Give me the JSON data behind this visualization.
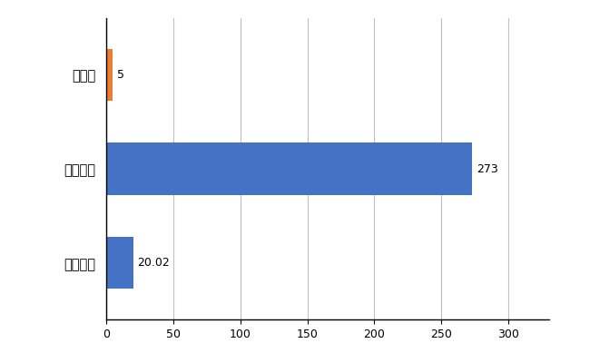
{
  "categories": [
    "全国平均",
    "全国最大",
    "長崎県"
  ],
  "values": [
    20.02,
    273,
    5
  ],
  "bar_colors": [
    "#4472c4",
    "#4472c4",
    "#ed7d31"
  ],
  "value_labels": [
    "20.02",
    "273",
    "5"
  ],
  "xlim": [
    0,
    330
  ],
  "xticks": [
    0,
    50,
    100,
    150,
    200,
    250,
    300
  ],
  "background_color": "#ffffff",
  "grid_color": "#c0c0c0",
  "bar_height": 0.55,
  "figsize": [
    6.5,
    4.0
  ],
  "dpi": 100
}
